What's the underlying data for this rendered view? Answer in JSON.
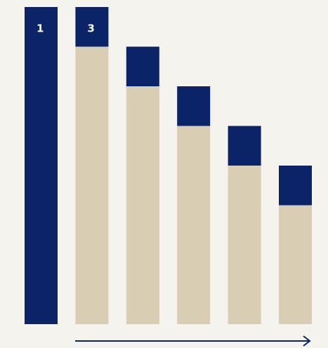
{
  "chart_data": {
    "type": "stacked_bar",
    "categories": [
      null,
      null,
      null,
      null,
      null,
      null
    ],
    "series": [
      {
        "color": "#d9cdb4",
        "values": [
          0,
          7,
          6,
          5,
          4,
          3
        ]
      },
      {
        "color": "#0b2468",
        "values": [
          8,
          1,
          1,
          1,
          1,
          1
        ]
      }
    ],
    "bar_labels": [
      "1",
      "3"
    ],
    "ylim": [
      0,
      8
    ]
  }
}
